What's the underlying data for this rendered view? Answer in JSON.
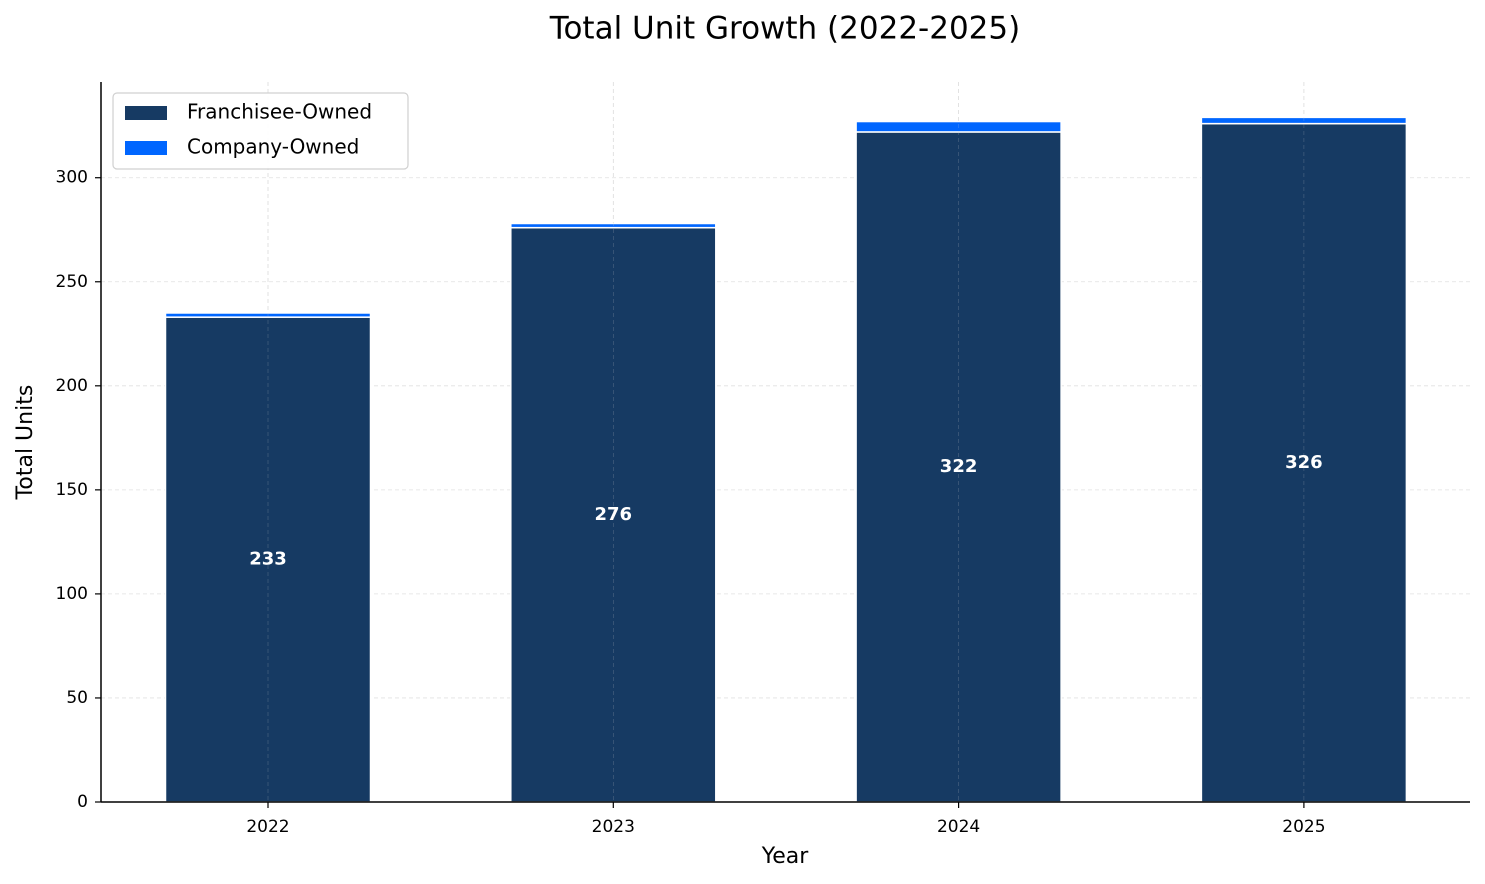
{
  "chart_data": {
    "type": "stacked_bar",
    "title": "Total Unit Growth (2022-2025)",
    "x_label": "Year",
    "y_label": "Total Units",
    "categories": [
      "2022",
      "2023",
      "2024",
      "2025"
    ],
    "series": [
      {
        "name": "Franchisee-Owned",
        "color": "#163a63",
        "values": [
          233,
          276,
          322,
          326
        ]
      },
      {
        "name": "Company-Owned",
        "color": "#0066ff",
        "values": [
          2,
          2,
          5,
          3
        ]
      }
    ],
    "ylim": [
      0,
      346
    ],
    "yticks": [
      0,
      50,
      100,
      150,
      200,
      250,
      300
    ],
    "grid": true,
    "legend": "upper left",
    "value_label_series": 0
  }
}
